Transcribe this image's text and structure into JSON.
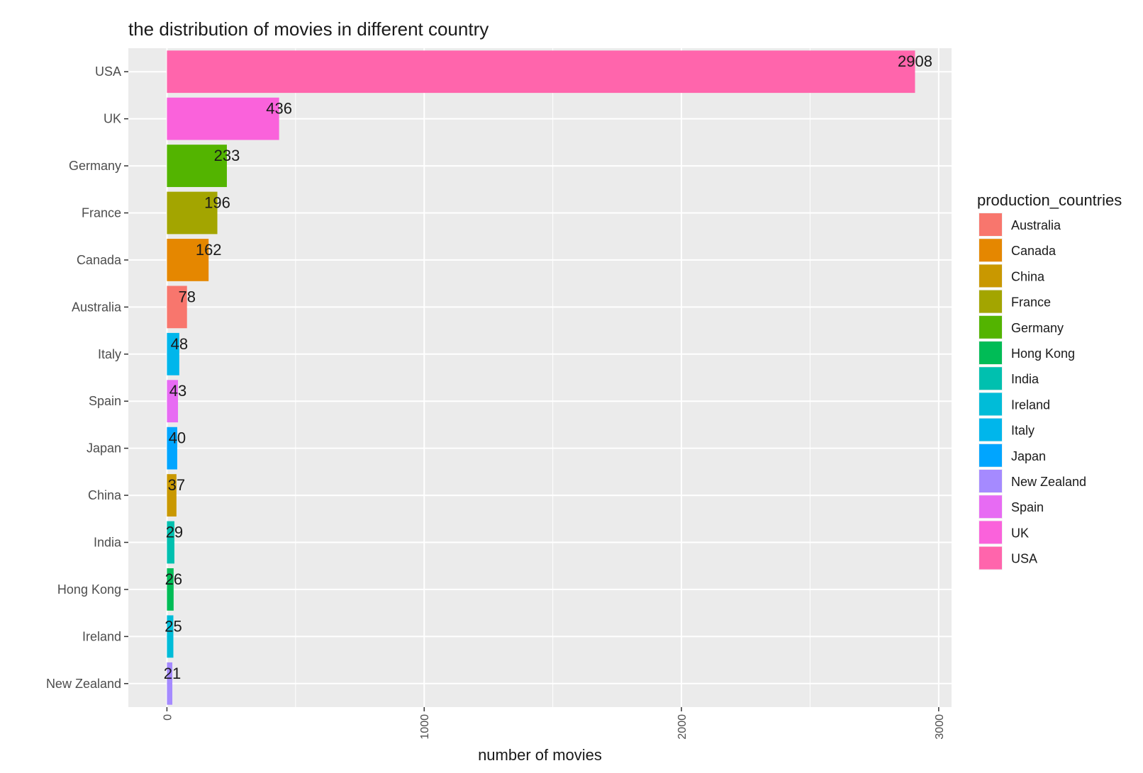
{
  "chart_data": {
    "type": "bar",
    "orientation": "horizontal",
    "title": "the distribution of movies in different country",
    "xlabel": "number of movies",
    "ylabel": "",
    "xlim": [
      -150,
      3050
    ],
    "x_ticks": [
      0,
      1000,
      2000,
      3000
    ],
    "x_tick_labels": [
      "0",
      "1000",
      "2000",
      "3000"
    ],
    "grid": true,
    "categories": [
      "USA",
      "UK",
      "Germany",
      "France",
      "Canada",
      "Australia",
      "Italy",
      "Spain",
      "Japan",
      "China",
      "India",
      "Hong Kong",
      "Ireland",
      "New Zealand"
    ],
    "values": [
      2908,
      436,
      233,
      196,
      162,
      78,
      48,
      43,
      40,
      37,
      29,
      26,
      25,
      21
    ],
    "value_labels": [
      "2908",
      "436",
      "233",
      "196",
      "162",
      "78",
      "48",
      "43",
      "40",
      "37",
      "29",
      "26",
      "25",
      "21"
    ],
    "bar_colors": [
      "#FF65AC",
      "#FA62DB",
      "#53B400",
      "#A3A500",
      "#E58700",
      "#F8766D",
      "#00B6EB",
      "#E76BF3",
      "#00A5FF",
      "#C99800",
      "#00C0AF",
      "#00BC56",
      "#00BCD8",
      "#A58AFF"
    ],
    "legend": {
      "title": "production_countries",
      "position": "right",
      "entries": [
        {
          "label": "Australia",
          "color": "#F8766D"
        },
        {
          "label": "Canada",
          "color": "#E58700"
        },
        {
          "label": "China",
          "color": "#C99800"
        },
        {
          "label": "France",
          "color": "#A3A500"
        },
        {
          "label": "Germany",
          "color": "#53B400"
        },
        {
          "label": "Hong Kong",
          "color": "#00BC56"
        },
        {
          "label": "India",
          "color": "#00C0AF"
        },
        {
          "label": "Ireland",
          "color": "#00BCD8"
        },
        {
          "label": "Italy",
          "color": "#00B6EB"
        },
        {
          "label": "Japan",
          "color": "#00A5FF"
        },
        {
          "label": "New Zealand",
          "color": "#A58AFF"
        },
        {
          "label": "Spain",
          "color": "#E76BF3"
        },
        {
          "label": "UK",
          "color": "#FA62DB"
        },
        {
          "label": "USA",
          "color": "#FF65AC"
        }
      ]
    },
    "panel_background": "#EBEBEB",
    "grid_color": "#FFFFFF"
  }
}
